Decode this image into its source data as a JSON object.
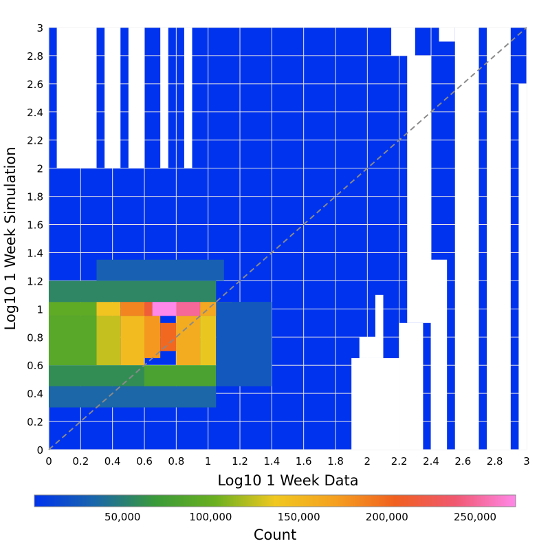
{
  "chart_data": {
    "type": "heatmap",
    "title": "",
    "xlabel": "Log10 1 Week Data",
    "ylabel": "Log10 1 Week Simulation",
    "xlim": [
      0,
      3
    ],
    "ylim": [
      0,
      3
    ],
    "x_ticks": [
      "0",
      "0.2",
      "0.4",
      "0.6",
      "0.8",
      "1",
      "1.2",
      "1.4",
      "1.6",
      "1.8",
      "2",
      "2.2",
      "2.4",
      "2.6",
      "2.8",
      "3"
    ],
    "y_ticks": [
      "0",
      "0.2",
      "0.4",
      "0.6",
      "0.8",
      "1",
      "1.2",
      "1.4",
      "1.6",
      "1.8",
      "2",
      "2.2",
      "2.4",
      "2.6",
      "2.8",
      "3"
    ],
    "grid": true,
    "diagonal_reference": "y = x (dashed grey)",
    "colorbar": {
      "label": "Count",
      "range": [
        0,
        273000
      ],
      "ticks": [
        "50,000",
        "100,000",
        "150,000",
        "200,000",
        "250,000"
      ],
      "tick_values": [
        50000,
        100000,
        150000,
        200000,
        250000
      ],
      "colors": [
        "#0033ee",
        "#1a66aa",
        "#3a9a3a",
        "#6ab020",
        "#f0c820",
        "#f5a020",
        "#f06020",
        "#f05870",
        "#ff88e8"
      ]
    },
    "cells": [
      {
        "x": [
          0.0,
          0.3
        ],
        "y": [
          0.6,
          0.95
        ],
        "count": 90000
      },
      {
        "x": [
          0.3,
          0.45
        ],
        "y": [
          0.6,
          0.95
        ],
        "count": 125000
      },
      {
        "x": [
          0.45,
          0.6
        ],
        "y": [
          0.6,
          0.95
        ],
        "count": 148000
      },
      {
        "x": [
          0.6,
          0.7
        ],
        "y": [
          0.65,
          0.95
        ],
        "count": 175000
      },
      {
        "x": [
          0.7,
          0.8
        ],
        "y": [
          0.7,
          0.9
        ],
        "count": 200000
      },
      {
        "x": [
          0.8,
          0.95
        ],
        "y": [
          0.6,
          0.95
        ],
        "count": 160000
      },
      {
        "x": [
          0.95,
          1.05
        ],
        "y": [
          0.6,
          0.95
        ],
        "count": 135000
      },
      {
        "x": [
          0.0,
          0.3
        ],
        "y": [
          0.95,
          1.05
        ],
        "count": 95000
      },
      {
        "x": [
          0.3,
          0.45
        ],
        "y": [
          0.95,
          1.05
        ],
        "count": 140000
      },
      {
        "x": [
          0.45,
          0.6
        ],
        "y": [
          0.95,
          1.05
        ],
        "count": 185000
      },
      {
        "x": [
          0.6,
          0.65
        ],
        "y": [
          0.95,
          1.05
        ],
        "count": 215000
      },
      {
        "x": [
          0.65,
          0.8
        ],
        "y": [
          0.95,
          1.05
        ],
        "count": 273000
      },
      {
        "x": [
          0.8,
          0.95
        ],
        "y": [
          0.95,
          1.05
        ],
        "count": 250000
      },
      {
        "x": [
          0.95,
          1.15
        ],
        "y": [
          0.95,
          1.05
        ],
        "count": 165000
      },
      {
        "x": [
          0.0,
          0.6
        ],
        "y": [
          0.45,
          0.6
        ],
        "count": 60000
      },
      {
        "x": [
          0.6,
          1.05
        ],
        "y": [
          0.45,
          0.6
        ],
        "count": 80000
      },
      {
        "x": [
          0.0,
          1.05
        ],
        "y": [
          0.3,
          0.45
        ],
        "count": 35000
      },
      {
        "x": [
          0.0,
          1.05
        ],
        "y": [
          1.05,
          1.2
        ],
        "count": 55000
      },
      {
        "x": [
          0.3,
          1.1
        ],
        "y": [
          1.2,
          1.35
        ],
        "count": 30000
      },
      {
        "x": [
          1.05,
          1.4
        ],
        "y": [
          0.45,
          1.05
        ],
        "count": 25000
      }
    ]
  }
}
